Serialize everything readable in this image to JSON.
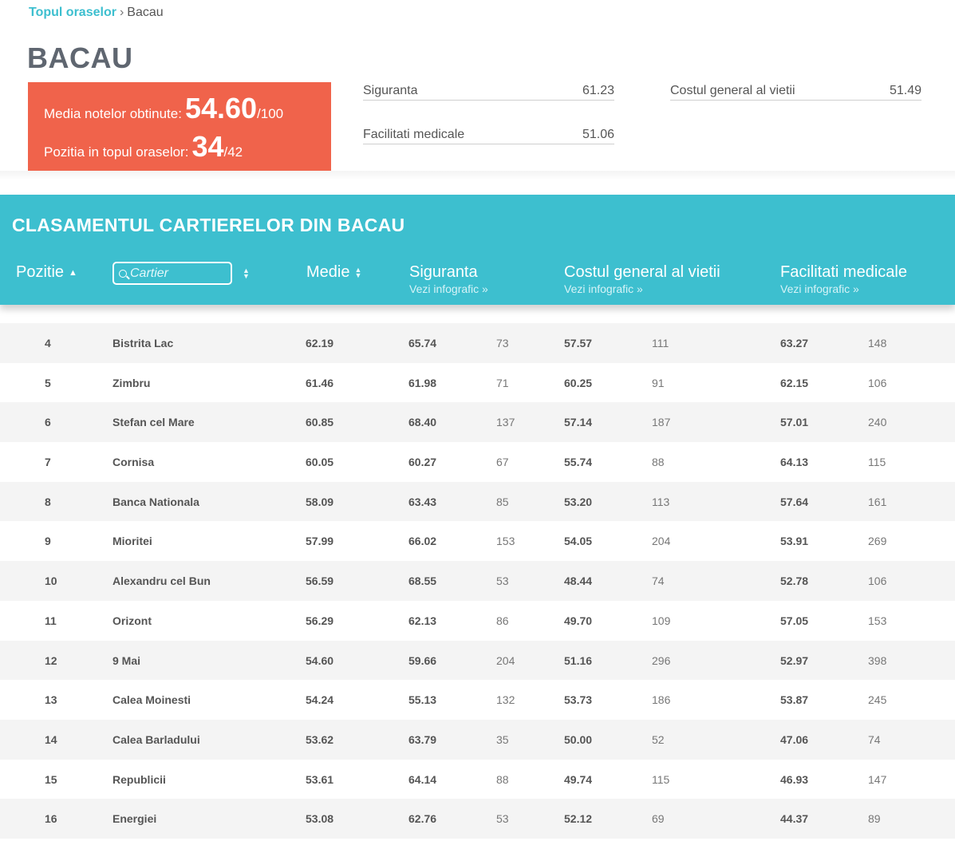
{
  "breadcrumb": {
    "link": "Topul oraselor",
    "separator": "›",
    "current": "Bacau"
  },
  "city": {
    "title": "BACAU",
    "average_label": "Media notelor obtinute:",
    "average_value": "54.60",
    "average_max": "/100",
    "rank_label": "Pozitia in topul oraselor:",
    "rank_value": "34",
    "rank_max": "/42"
  },
  "metrics": {
    "safety": {
      "label": "Siguranta",
      "value": "61.23"
    },
    "cost": {
      "label": "Costul general al vietii",
      "value": "51.49"
    },
    "medical": {
      "label": "Facilitati medicale",
      "value": "51.06"
    }
  },
  "table": {
    "title": "CLASAMENTUL CARTIERELOR DIN BACAU",
    "headers": {
      "position": "Pozitie",
      "search_placeholder": "Cartier",
      "average": "Medie",
      "safety": "Siguranta",
      "cost": "Costul general al vietii",
      "medical": "Facilitati medicale",
      "infographic_link": "Vezi infografic »"
    },
    "colors": {
      "accent": "#3dbfcf",
      "score_box": "#f0634b"
    },
    "rows": [
      {
        "pos": "4",
        "name": "Bistrita Lac",
        "avg": "62.19",
        "safety": "65.74",
        "safety_n": "73",
        "cost": "57.57",
        "cost_n": "111",
        "medical": "63.27",
        "medical_n": "148"
      },
      {
        "pos": "5",
        "name": "Zimbru",
        "avg": "61.46",
        "safety": "61.98",
        "safety_n": "71",
        "cost": "60.25",
        "cost_n": "91",
        "medical": "62.15",
        "medical_n": "106"
      },
      {
        "pos": "6",
        "name": "Stefan cel Mare",
        "avg": "60.85",
        "safety": "68.40",
        "safety_n": "137",
        "cost": "57.14",
        "cost_n": "187",
        "medical": "57.01",
        "medical_n": "240"
      },
      {
        "pos": "7",
        "name": "Cornisa",
        "avg": "60.05",
        "safety": "60.27",
        "safety_n": "67",
        "cost": "55.74",
        "cost_n": "88",
        "medical": "64.13",
        "medical_n": "115"
      },
      {
        "pos": "8",
        "name": "Banca Nationala",
        "avg": "58.09",
        "safety": "63.43",
        "safety_n": "85",
        "cost": "53.20",
        "cost_n": "113",
        "medical": "57.64",
        "medical_n": "161"
      },
      {
        "pos": "9",
        "name": "Mioritei",
        "avg": "57.99",
        "safety": "66.02",
        "safety_n": "153",
        "cost": "54.05",
        "cost_n": "204",
        "medical": "53.91",
        "medical_n": "269"
      },
      {
        "pos": "10",
        "name": "Alexandru cel Bun",
        "avg": "56.59",
        "safety": "68.55",
        "safety_n": "53",
        "cost": "48.44",
        "cost_n": "74",
        "medical": "52.78",
        "medical_n": "106"
      },
      {
        "pos": "11",
        "name": "Orizont",
        "avg": "56.29",
        "safety": "62.13",
        "safety_n": "86",
        "cost": "49.70",
        "cost_n": "109",
        "medical": "57.05",
        "medical_n": "153"
      },
      {
        "pos": "12",
        "name": "9 Mai",
        "avg": "54.60",
        "safety": "59.66",
        "safety_n": "204",
        "cost": "51.16",
        "cost_n": "296",
        "medical": "52.97",
        "medical_n": "398"
      },
      {
        "pos": "13",
        "name": "Calea Moinesti",
        "avg": "54.24",
        "safety": "55.13",
        "safety_n": "132",
        "cost": "53.73",
        "cost_n": "186",
        "medical": "53.87",
        "medical_n": "245"
      },
      {
        "pos": "14",
        "name": "Calea Barladului",
        "avg": "53.62",
        "safety": "63.79",
        "safety_n": "35",
        "cost": "50.00",
        "cost_n": "52",
        "medical": "47.06",
        "medical_n": "74"
      },
      {
        "pos": "15",
        "name": "Republicii",
        "avg": "53.61",
        "safety": "64.14",
        "safety_n": "88",
        "cost": "49.74",
        "cost_n": "115",
        "medical": "46.93",
        "medical_n": "147"
      },
      {
        "pos": "16",
        "name": "Energiei",
        "avg": "53.08",
        "safety": "62.76",
        "safety_n": "53",
        "cost": "52.12",
        "cost_n": "69",
        "medical": "44.37",
        "medical_n": "89"
      }
    ]
  }
}
